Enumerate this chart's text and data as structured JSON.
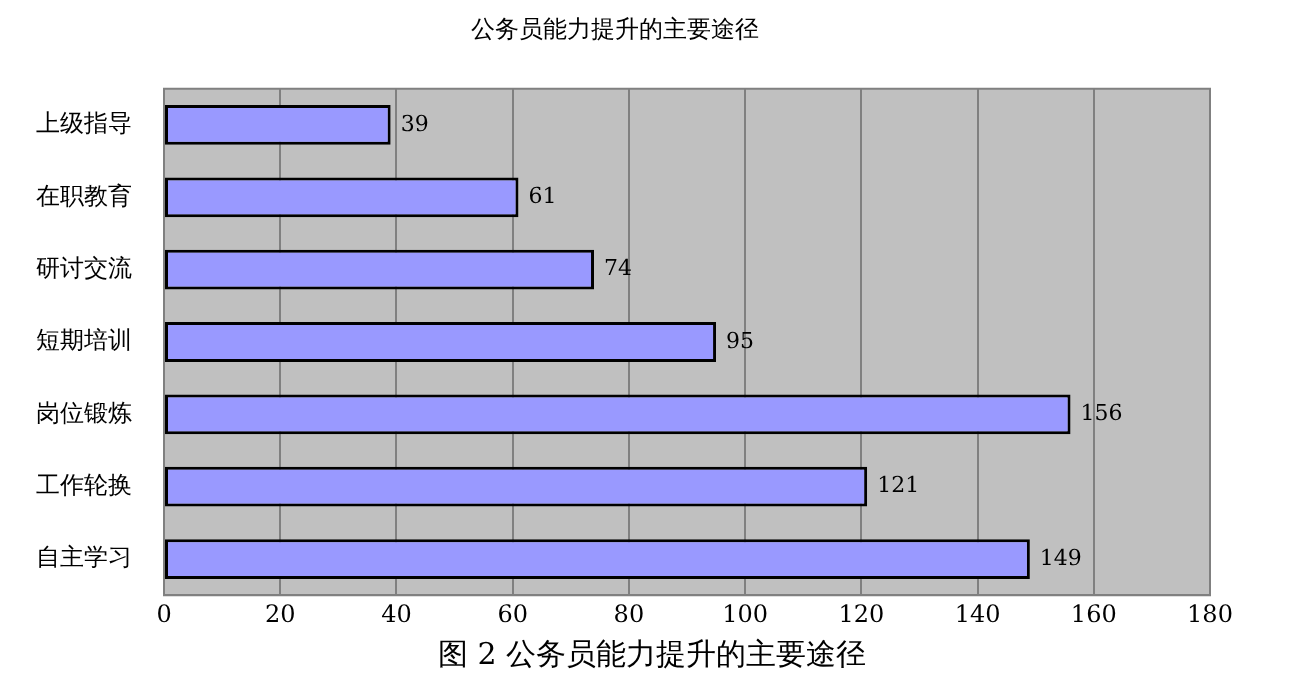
{
  "chart_data": {
    "type": "bar",
    "orientation": "horizontal",
    "title": "公务员能力提升的主要途径",
    "categories": [
      "上级指导",
      "在职教育",
      "研讨交流",
      "短期培训",
      "岗位锻炼",
      "工作轮换",
      "自主学习"
    ],
    "values": [
      39,
      61,
      74,
      95,
      156,
      121,
      149
    ],
    "color": "#9999ff",
    "xlim": [
      0,
      180
    ],
    "xticks": [
      0,
      20,
      40,
      60,
      80,
      100,
      120,
      140,
      160,
      180
    ],
    "grid": "x",
    "data_labels": true,
    "annotations": [
      "图 2  公务员能力提升的主要途径"
    ]
  }
}
